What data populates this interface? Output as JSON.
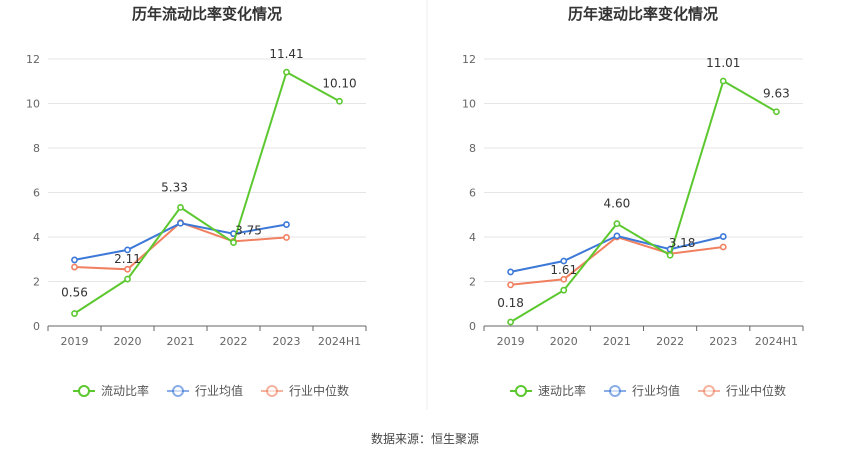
{
  "source_text": "数据来源：恒生聚源",
  "chart_data": [
    {
      "type": "line",
      "title": "历年流动比率变化情况",
      "categories": [
        "2019",
        "2020",
        "2021",
        "2022",
        "2023",
        "2024H1"
      ],
      "ylim": [
        0,
        12
      ],
      "yticks": [
        0,
        2,
        4,
        6,
        8,
        10,
        12
      ],
      "grid": true,
      "legend_position": "bottom",
      "series": [
        {
          "name": "流动比率",
          "color": "#5cc82f",
          "values": [
            0.56,
            2.11,
            5.33,
            3.75,
            11.41,
            10.1
          ],
          "labels": [
            "0.56",
            "2.11",
            "5.33",
            "3.75",
            "11.41",
            "10.10"
          ]
        },
        {
          "name": "行业均值",
          "color": "#3c78d8",
          "values": [
            2.97,
            3.42,
            4.62,
            4.15,
            4.56,
            null
          ],
          "labels": []
        },
        {
          "name": "行业中位数",
          "color": "#f08060",
          "values": [
            2.65,
            2.55,
            4.65,
            3.8,
            3.98,
            null
          ],
          "labels": []
        }
      ]
    },
    {
      "type": "line",
      "title": "历年速动比率变化情况",
      "categories": [
        "2019",
        "2020",
        "2021",
        "2022",
        "2023",
        "2024H1"
      ],
      "ylim": [
        0,
        12
      ],
      "yticks": [
        0,
        2,
        4,
        6,
        8,
        10,
        12
      ],
      "grid": true,
      "legend_position": "bottom",
      "series": [
        {
          "name": "速动比率",
          "color": "#5cc82f",
          "values": [
            0.18,
            1.61,
            4.6,
            3.18,
            11.01,
            9.63
          ],
          "labels": [
            "0.18",
            "1.61",
            "4.60",
            "3.18",
            "11.01",
            "9.63"
          ]
        },
        {
          "name": "行业均值",
          "color": "#3c78d8",
          "values": [
            2.43,
            2.92,
            4.05,
            3.45,
            4.02,
            null
          ],
          "labels": []
        },
        {
          "name": "行业中位数",
          "color": "#f08060",
          "values": [
            1.85,
            2.1,
            4.0,
            3.25,
            3.55,
            null
          ],
          "labels": []
        }
      ]
    }
  ]
}
